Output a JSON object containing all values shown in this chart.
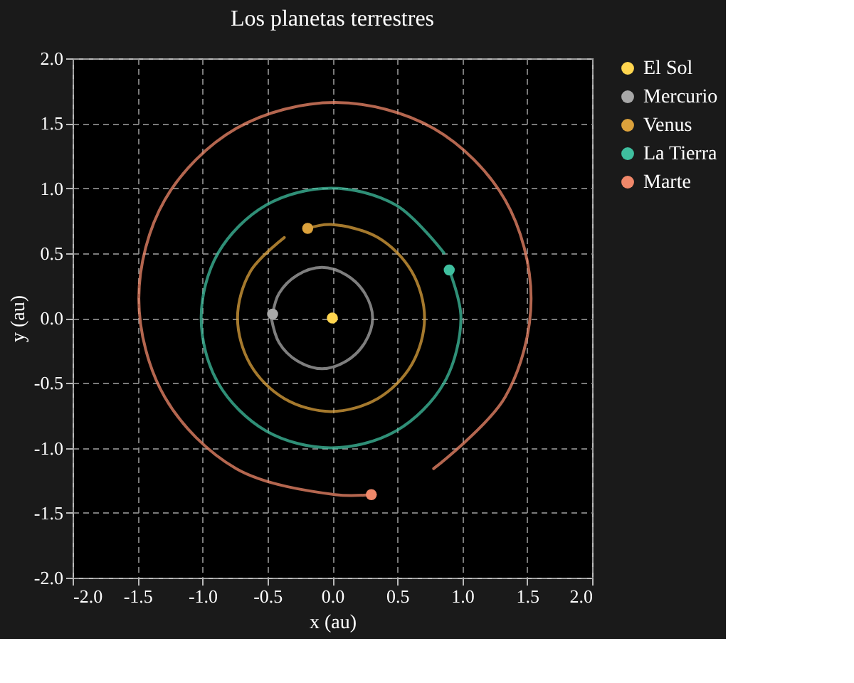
{
  "chart_data": {
    "type": "scatter",
    "title": "Los planetas terrestres",
    "xlabel": "x (au)",
    "ylabel": "y (au)",
    "xlim": [
      -2.0,
      2.0
    ],
    "ylim": [
      -2.0,
      2.0
    ],
    "xticks": [
      {
        "value": -2,
        "label": "-2.0"
      },
      {
        "value": -1.5,
        "label": "-1.5"
      },
      {
        "value": -1,
        "label": "-1.0"
      },
      {
        "value": -0.5,
        "label": "-0.5"
      },
      {
        "value": 0,
        "label": "0.0"
      },
      {
        "value": 0.5,
        "label": "0.5"
      },
      {
        "value": 1,
        "label": "1.0"
      },
      {
        "value": 1.5,
        "label": "1.5"
      },
      {
        "value": 2,
        "label": "2.0"
      }
    ],
    "yticks": [
      {
        "value": -2,
        "label": "-2.0"
      },
      {
        "value": -1.5,
        "label": "-1.5"
      },
      {
        "value": -1,
        "label": "-1.0"
      },
      {
        "value": -0.5,
        "label": "-0.5"
      },
      {
        "value": 0,
        "label": "0.0"
      },
      {
        "value": 0.5,
        "label": "0.5"
      },
      {
        "value": 1,
        "label": "1.0"
      },
      {
        "value": 1.5,
        "label": "1.5"
      },
      {
        "value": 2,
        "label": "2.0"
      }
    ],
    "grid": true,
    "legend": "top right",
    "marker": "circle",
    "line_style": "solid",
    "series": [
      {
        "type": "line",
        "marker": "none",
        "color": "#a8a8a8",
        "x": [
          -0.46,
          -0.41,
          -0.27,
          -0.08,
          0.11,
          0.25,
          0.31,
          0.25,
          0.11,
          -0.08,
          -0.27,
          -0.41,
          -0.47
        ],
        "values": [
          0.03,
          0.19,
          0.33,
          0.39,
          0.33,
          0.19,
          0.0,
          -0.19,
          -0.33,
          -0.39,
          -0.33,
          -0.19,
          0.0
        ]
      },
      {
        "type": "line",
        "marker": "none",
        "color": "#dca23c",
        "x": [
          -0.19,
          -0.01,
          0.35,
          0.61,
          0.71,
          0.61,
          0.35,
          -0.01,
          -0.37,
          -0.63,
          -0.73,
          -0.63,
          -0.37
        ],
        "values": [
          0.69,
          0.72,
          0.62,
          0.36,
          0.0,
          -0.36,
          -0.62,
          -0.72,
          -0.62,
          -0.36,
          0.0,
          0.36,
          0.62
        ]
      },
      {
        "type": "line",
        "marker": "none",
        "color": "#3fbf9f",
        "x": [
          0.9,
          0.99,
          0.86,
          0.49,
          -0.01,
          -0.51,
          -0.88,
          -1.01,
          -0.88,
          -0.51,
          -0.01,
          0.49,
          0.86
        ],
        "values": [
          0.37,
          0.0,
          -0.5,
          -0.87,
          -1.0,
          -0.87,
          -0.5,
          0.0,
          0.5,
          0.87,
          1.0,
          0.87,
          0.5
        ]
      },
      {
        "type": "line",
        "marker": "none",
        "color": "#f0886a",
        "x": [
          0.3,
          0.02,
          -0.74,
          -1.29,
          -1.49,
          -1.29,
          -0.74,
          0.02,
          0.78,
          1.33,
          1.53,
          1.33,
          0.78
        ],
        "values": [
          -1.36,
          -1.36,
          -1.16,
          -0.61,
          0.15,
          0.91,
          1.46,
          1.66,
          1.46,
          0.91,
          0.15,
          -0.61,
          -1.16
        ]
      },
      {
        "name": "El Sol",
        "color": "#ffd54f",
        "x": [
          0.0
        ],
        "values": [
          0.0
        ]
      },
      {
        "name": "Mercurio",
        "color": "#a8a8a8",
        "x": [
          -0.46
        ],
        "values": [
          0.03
        ]
      },
      {
        "name": "Venus",
        "color": "#dca23c",
        "x": [
          -0.19
        ],
        "values": [
          0.69
        ]
      },
      {
        "name": "La Tierra",
        "color": "#3fbf9f",
        "x": [
          0.9
        ],
        "values": [
          0.37
        ]
      },
      {
        "name": "Marte",
        "color": "#f0886a",
        "x": [
          0.3
        ],
        "values": [
          -1.36
        ]
      }
    ]
  }
}
